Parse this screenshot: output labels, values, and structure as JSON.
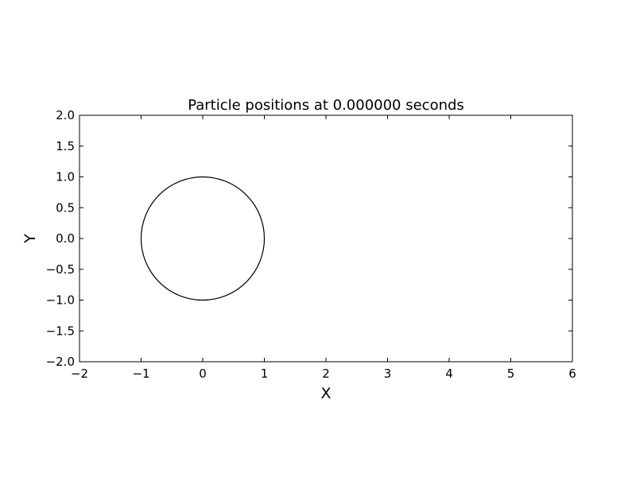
{
  "chart_data": {
    "type": "line",
    "title": "Particle positions at 0.000000 seconds",
    "xlabel": "X",
    "ylabel": "Y",
    "xlim": [
      -2,
      6
    ],
    "ylim": [
      -2,
      2
    ],
    "grid": false,
    "legend": null,
    "x_ticks": [
      "−2",
      "−1",
      "0",
      "1",
      "2",
      "3",
      "4",
      "5",
      "6"
    ],
    "y_ticks": [
      "−2.0",
      "−1.5",
      "−1.0",
      "−0.5",
      "0.0",
      "0.5",
      "1.0",
      "1.5",
      "2.0"
    ],
    "series": [
      {
        "shape": "circle",
        "center": [
          0,
          0
        ],
        "radius": 1,
        "color": "#000000"
      }
    ]
  }
}
